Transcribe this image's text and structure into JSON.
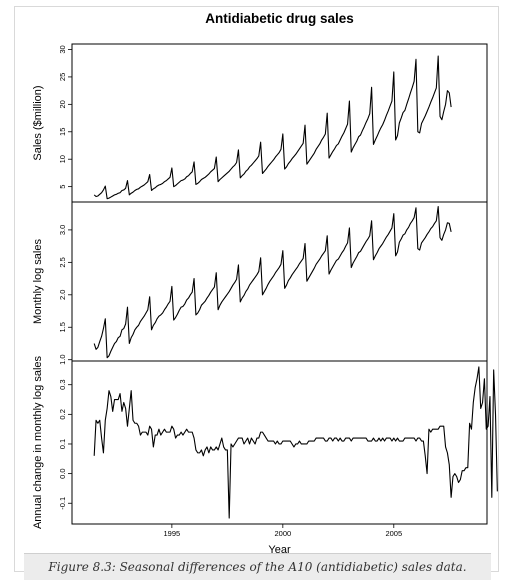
{
  "caption": "Figure 8.3: Seasonal differences of the A10 (antidiabetic) sales data.",
  "chart_data": {
    "type": "line",
    "title": "Antidiabetic drug sales",
    "xlabel": "Year",
    "x_ticks": [
      "1995",
      "2000",
      "2005"
    ],
    "x_tick_values": [
      1995,
      2000,
      2005
    ],
    "xlim": [
      1990.5,
      2009.2
    ],
    "time_range": {
      "start": "1991-07",
      "end": "2008-06",
      "frequency": "monthly"
    },
    "line_color": "#000000",
    "panels": [
      {
        "name": "sales",
        "ylabel": "Sales ($million)",
        "ylim": [
          2.2,
          31
        ],
        "y_ticks": [
          "5",
          "10",
          "15",
          "20",
          "25",
          "30"
        ],
        "y_tick_values": [
          5,
          10,
          15,
          20,
          25,
          30
        ],
        "values": [
          3.5,
          3.2,
          3.3,
          3.6,
          3.9,
          4.4,
          5.1,
          2.8,
          2.9,
          3.1,
          3.3,
          3.5,
          3.6,
          3.8,
          3.9,
          4.3,
          4.4,
          4.7,
          6.1,
          3.5,
          3.8,
          4.0,
          4.3,
          4.5,
          4.6,
          4.9,
          5.1,
          5.3,
          5.6,
          5.9,
          7.2,
          4.3,
          4.6,
          4.8,
          5.1,
          5.3,
          5.4,
          5.6,
          5.9,
          6.1,
          6.4,
          6.7,
          8.4,
          5.0,
          5.2,
          5.5,
          5.8,
          6.1,
          6.2,
          6.4,
          6.8,
          7.0,
          7.4,
          7.7,
          9.5,
          5.4,
          5.6,
          5.9,
          6.3,
          6.5,
          6.7,
          7.0,
          7.3,
          7.7,
          8.0,
          8.3,
          10.4,
          5.9,
          6.3,
          6.6,
          6.9,
          7.2,
          7.5,
          7.8,
          8.2,
          8.6,
          8.9,
          9.4,
          11.7,
          6.6,
          7.0,
          7.3,
          7.8,
          8.1,
          8.6,
          8.9,
          9.3,
          9.7,
          10.1,
          10.6,
          13.1,
          7.4,
          7.8,
          8.2,
          8.7,
          9.1,
          9.5,
          9.9,
          10.4,
          10.8,
          11.2,
          11.8,
          14.6,
          8.2,
          8.6,
          9.2,
          9.6,
          10.1,
          10.5,
          10.9,
          11.4,
          11.9,
          12.4,
          12.9,
          16.2,
          9.1,
          9.6,
          10.1,
          10.6,
          11.1,
          11.8,
          12.3,
          12.8,
          13.5,
          14.0,
          14.6,
          18.4,
          10.2,
          10.8,
          11.4,
          11.9,
          12.5,
          12.8,
          13.5,
          14.2,
          14.8,
          15.6,
          16.4,
          20.6,
          11.3,
          12.1,
          12.7,
          13.3,
          14.1,
          14.4,
          15.2,
          15.9,
          16.7,
          17.4,
          18.3,
          23.1,
          12.7,
          13.5,
          14.2,
          15.0,
          15.7,
          16.3,
          17.1,
          18.0,
          18.8,
          19.7,
          20.6,
          25.9,
          13.5,
          14.3,
          16.6,
          17.5,
          18.5,
          18.9,
          20.0,
          21.0,
          22.1,
          23.1,
          24.2,
          28.2,
          15.0,
          14.8,
          16.5,
          17.2,
          17.9,
          18.7,
          19.5,
          20.4,
          21.2,
          22.1,
          23.0,
          28.8,
          17.8,
          17.2,
          18.7,
          20.0,
          22.5,
          22.1,
          19.5
        ]
      },
      {
        "name": "log",
        "ylabel": "Monthly log sales",
        "ylim": [
          0.98,
          3.43
        ],
        "y_ticks": [
          "1.0",
          "1.5",
          "2.0",
          "2.5",
          "3.0"
        ],
        "y_tick_values": [
          1.0,
          1.5,
          2.0,
          2.5,
          3.0
        ],
        "values": [
          1.25,
          1.16,
          1.19,
          1.28,
          1.36,
          1.48,
          1.63,
          1.03,
          1.06,
          1.13,
          1.19,
          1.25,
          1.28,
          1.34,
          1.36,
          1.46,
          1.48,
          1.55,
          1.81,
          1.25,
          1.34,
          1.39,
          1.46,
          1.5,
          1.53,
          1.59,
          1.63,
          1.67,
          1.72,
          1.77,
          1.97,
          1.46,
          1.53,
          1.57,
          1.63,
          1.67,
          1.69,
          1.72,
          1.77,
          1.81,
          1.86,
          1.9,
          2.13,
          1.61,
          1.65,
          1.7,
          1.76,
          1.81,
          1.82,
          1.86,
          1.92,
          1.95,
          2.0,
          2.04,
          2.25,
          1.69,
          1.72,
          1.77,
          1.84,
          1.87,
          1.9,
          1.95,
          1.99,
          2.04,
          2.08,
          2.12,
          2.34,
          1.77,
          1.84,
          1.89,
          1.93,
          1.97,
          2.01,
          2.05,
          2.1,
          2.15,
          2.19,
          2.24,
          2.46,
          1.89,
          1.95,
          1.99,
          2.05,
          2.09,
          2.15,
          2.19,
          2.23,
          2.27,
          2.31,
          2.36,
          2.57,
          2.0,
          2.05,
          2.1,
          2.16,
          2.21,
          2.25,
          2.29,
          2.34,
          2.38,
          2.42,
          2.47,
          2.68,
          2.1,
          2.15,
          2.22,
          2.26,
          2.31,
          2.35,
          2.39,
          2.43,
          2.48,
          2.52,
          2.56,
          2.79,
          2.21,
          2.26,
          2.31,
          2.36,
          2.41,
          2.47,
          2.51,
          2.55,
          2.6,
          2.64,
          2.68,
          2.91,
          2.32,
          2.38,
          2.43,
          2.48,
          2.53,
          2.55,
          2.6,
          2.65,
          2.69,
          2.75,
          2.8,
          3.03,
          2.42,
          2.49,
          2.54,
          2.59,
          2.65,
          2.67,
          2.72,
          2.77,
          2.82,
          2.86,
          2.91,
          3.14,
          2.54,
          2.6,
          2.65,
          2.71,
          2.75,
          2.79,
          2.84,
          2.89,
          2.93,
          2.98,
          3.03,
          3.25,
          2.6,
          2.66,
          2.81,
          2.86,
          2.92,
          2.94,
          3.0,
          3.04,
          3.1,
          3.14,
          3.19,
          3.34,
          2.71,
          2.69,
          2.8,
          2.84,
          2.88,
          2.93,
          2.97,
          3.02,
          3.05,
          3.1,
          3.14,
          3.36,
          2.88,
          2.84,
          2.93,
          3.0,
          3.11,
          3.1,
          2.97
        ]
      },
      {
        "name": "annual_change",
        "ylabel": "Annual change in monthly log sales",
        "ylim": [
          -0.17,
          0.38
        ],
        "y_ticks": [
          "-0.1",
          "0.0",
          "0.1",
          "0.2",
          "0.3"
        ],
        "y_tick_values": [
          -0.1,
          0.0,
          0.1,
          0.2,
          0.3
        ],
        "values": [
          0.06,
          0.18,
          0.17,
          0.18,
          0.12,
          0.07,
          0.18,
          0.22,
          0.28,
          0.26,
          0.21,
          0.25,
          0.25,
          0.25,
          0.27,
          0.21,
          0.24,
          0.22,
          0.16,
          0.22,
          0.28,
          0.18,
          0.17,
          0.17,
          0.16,
          0.13,
          0.14,
          0.14,
          0.14,
          0.13,
          0.16,
          0.15,
          0.09,
          0.13,
          0.13,
          0.15,
          0.13,
          0.14,
          0.15,
          0.14,
          0.14,
          0.14,
          0.16,
          0.15,
          0.12,
          0.13,
          0.13,
          0.14,
          0.13,
          0.14,
          0.15,
          0.14,
          0.14,
          0.14,
          0.12,
          0.08,
          0.07,
          0.07,
          0.08,
          0.06,
          0.08,
          0.09,
          0.07,
          0.09,
          0.08,
          0.08,
          0.09,
          0.08,
          0.1,
          0.12,
          0.09,
          0.08,
          0.08,
          -0.15,
          0.1,
          0.09,
          0.1,
          0.11,
          0.12,
          0.12,
          0.12,
          0.1,
          0.11,
          0.12,
          0.1,
          0.12,
          0.11,
          0.1,
          0.12,
          0.12,
          0.14,
          0.14,
          0.13,
          0.12,
          0.11,
          0.11,
          0.11,
          0.11,
          0.1,
          0.11,
          0.1,
          0.1,
          0.11,
          0.11,
          0.11,
          0.11,
          0.11,
          0.1,
          0.09,
          0.1,
          0.1,
          0.11,
          0.1,
          0.1,
          0.1,
          0.1,
          0.11,
          0.11,
          0.11,
          0.11,
          0.12,
          0.12,
          0.12,
          0.12,
          0.12,
          0.11,
          0.11,
          0.12,
          0.12,
          0.11,
          0.12,
          0.12,
          0.11,
          0.12,
          0.11,
          0.11,
          0.12,
          0.12,
          0.12,
          0.11,
          0.12,
          0.12,
          0.12,
          0.12,
          0.12,
          0.12,
          0.12,
          0.12,
          0.11,
          0.11,
          0.11,
          0.12,
          0.11,
          0.11,
          0.12,
          0.11,
          0.12,
          0.11,
          0.12,
          0.12,
          0.12,
          0.11,
          0.12,
          0.11,
          0.12,
          0.11,
          0.11,
          0.11,
          0.12,
          0.12,
          0.12,
          0.12,
          0.12,
          0.12,
          0.11,
          0.12,
          0.12,
          0.11,
          0.11,
          0.06,
          0.0,
          0.15,
          0.14,
          0.15,
          0.15,
          0.15,
          0.15,
          0.16,
          0.16,
          0.16,
          0.09,
          0.07,
          0.03,
          -0.08,
          -0.01,
          0.0,
          -0.01,
          -0.03,
          -0.02,
          0.01,
          0.01,
          0.02,
          0.02,
          0.17,
          0.15,
          0.24,
          0.29,
          0.32,
          0.36,
          0.22,
          0.24,
          0.32,
          0.15,
          0.16,
          0.26,
          -0.08,
          0.35,
          0.2,
          -0.06
        ]
      }
    ]
  }
}
